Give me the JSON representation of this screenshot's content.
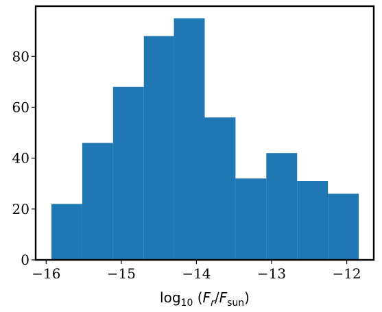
{
  "chart_data": {
    "type": "bar",
    "subtype": "histogram",
    "title": "",
    "xlabel": {
      "prefix": "log",
      "subscript": "10",
      "open": " (",
      "numerator": "F",
      "numerator_sub": "r",
      "slash": "/",
      "denominator": "F",
      "denominator_sub": "sun",
      "close": ")"
    },
    "ylabel": "",
    "bins": [
      {
        "x0": -15.93,
        "x1": -15.52,
        "count": 22
      },
      {
        "x0": -15.52,
        "x1": -15.11,
        "count": 46
      },
      {
        "x0": -15.11,
        "x1": -14.7,
        "count": 68
      },
      {
        "x0": -14.7,
        "x1": -14.3,
        "count": 88
      },
      {
        "x0": -14.3,
        "x1": -13.89,
        "count": 95
      },
      {
        "x0": -13.89,
        "x1": -13.48,
        "count": 56
      },
      {
        "x0": -13.48,
        "x1": -13.07,
        "count": 32
      },
      {
        "x0": -13.07,
        "x1": -12.66,
        "count": 42
      },
      {
        "x0": -12.66,
        "x1": -12.25,
        "count": 31
      },
      {
        "x0": -12.25,
        "x1": -11.84,
        "count": 26
      }
    ],
    "xlim": [
      -16.14,
      -11.64
    ],
    "ylim": [
      0,
      99.75
    ],
    "xticks": [
      -16,
      -15,
      -14,
      -13,
      -12
    ],
    "xtick_labels": [
      "−16",
      "−15",
      "−14",
      "−13",
      "−12"
    ],
    "yticks": [
      0,
      20,
      40,
      60,
      80
    ],
    "ytick_labels": [
      "0",
      "20",
      "40",
      "60",
      "80"
    ],
    "bar_color": "#1f77b4",
    "grid": false,
    "legend": "none"
  }
}
